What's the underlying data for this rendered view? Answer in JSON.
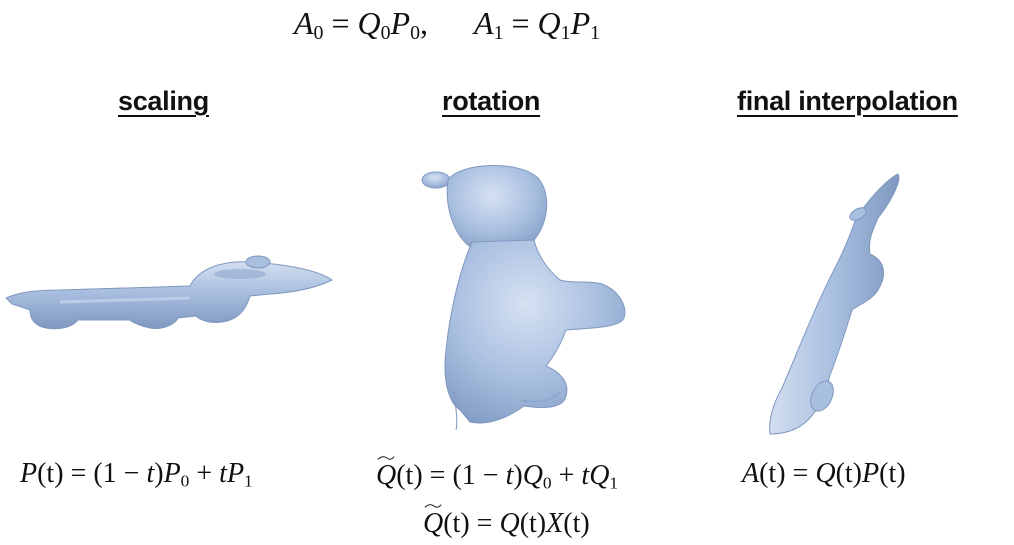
{
  "top_equation": {
    "left": {
      "lhs": "A",
      "lhs_sub": "0",
      "q": "Q",
      "q_sub": "0",
      "p": "P",
      "p_sub": "0",
      "trail": ","
    },
    "right": {
      "lhs": "A",
      "lhs_sub": "1",
      "q": "Q",
      "q_sub": "1",
      "p": "P",
      "p_sub": "1"
    }
  },
  "columns": [
    {
      "heading": "scaling"
    },
    {
      "heading": "rotation"
    },
    {
      "heading": "final interpolation"
    }
  ],
  "formulas": {
    "scaling": {
      "lhs": "P",
      "arg": "(t)",
      "eq": " = (1 − ",
      "t1": "t",
      "close": ")",
      "p0": "P",
      "s0": "0",
      "plus": " + ",
      "t2": "t",
      "p1": "P",
      "s1": "1"
    },
    "rotation_1": {
      "lhs": "Q",
      "arg": "(t)",
      "eq": " = (1 − ",
      "t1": "t",
      "close": ")",
      "q0": "Q",
      "s0": "0",
      "plus": " + ",
      "t2": "t",
      "q1": "Q",
      "s1": "1"
    },
    "rotation_2": {
      "lhs": "Q",
      "arg": "(t)",
      "eq": " = ",
      "q": "Q",
      "qarg": "(t)",
      "x": "X",
      "xarg": "(t)"
    },
    "final": {
      "lhs": "A",
      "arg": "(t)",
      "eq": " = ",
      "q": "Q",
      "qarg": "(t)",
      "p": "P",
      "parg": "(t)"
    }
  },
  "colors": {
    "mesh_base": "#a9bfe0",
    "mesh_light": "#cfdcef",
    "mesh_shadow": "#7f98c0"
  }
}
